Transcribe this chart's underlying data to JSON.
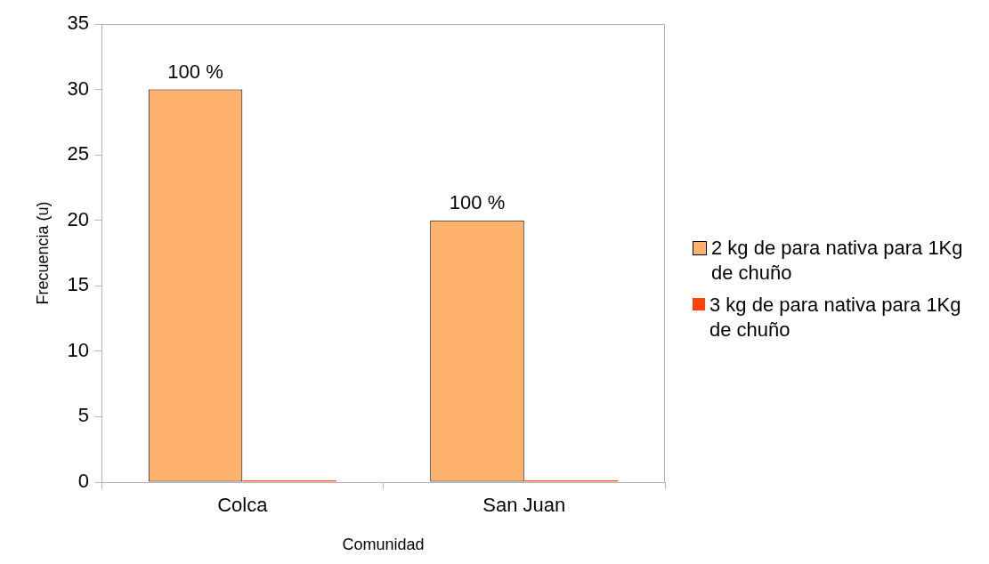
{
  "chart_data": {
    "type": "bar",
    "xlabel": "Comunidad",
    "ylabel": "Frecuencia (u)",
    "categories": [
      "Colca",
      "San Juan"
    ],
    "series": [
      {
        "name": "2 kg de para nativa para 1Kg de chuño",
        "color": "#ffb26b",
        "values": [
          30,
          20
        ]
      },
      {
        "name": "3 kg de para nativa para 1Kg de chuño",
        "color": "#ff420e",
        "values": [
          0,
          0
        ]
      }
    ],
    "annotations": [
      {
        "text": "100 %",
        "x": "Colca",
        "y": 30
      },
      {
        "text": "100 %",
        "x": "San Juan",
        "y": 20
      }
    ],
    "ylim": [
      0,
      35
    ],
    "yticks": [
      0,
      5,
      10,
      15,
      20,
      25,
      30,
      35
    ],
    "grid": false,
    "legend": "right"
  }
}
